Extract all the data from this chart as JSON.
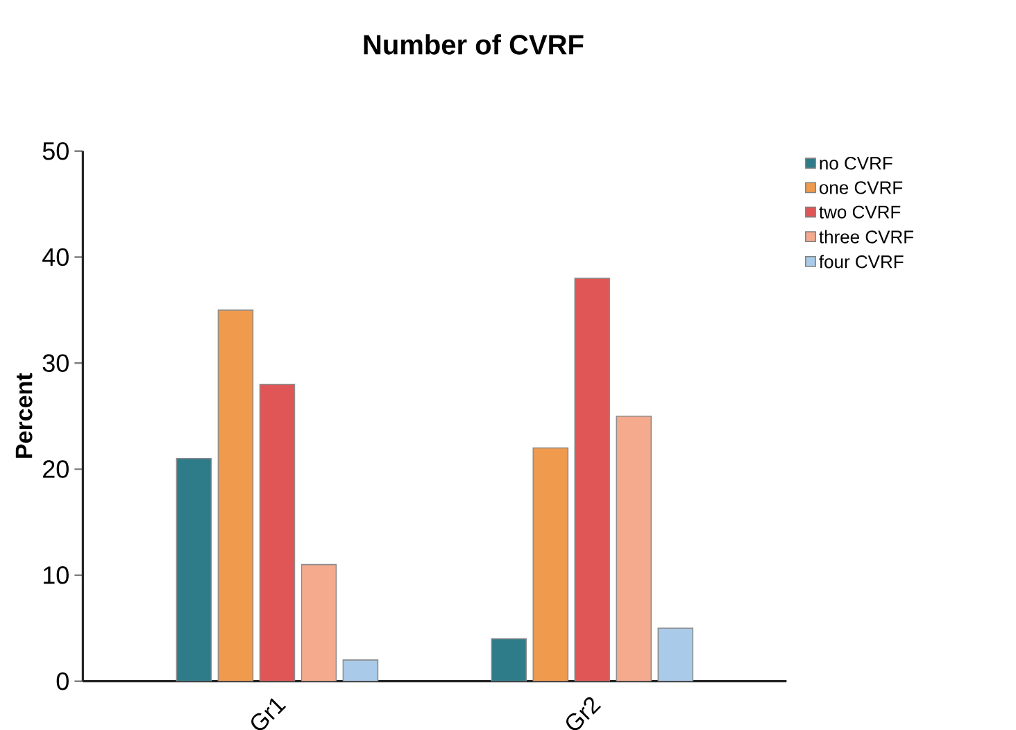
{
  "chart_data": {
    "type": "bar",
    "title": "Number of CVRF",
    "ylabel": "Percent",
    "categories": [
      "Gr1",
      "Gr2"
    ],
    "series": [
      {
        "name": "no CVRF",
        "color": "#2e7b8a",
        "values": [
          21,
          4
        ]
      },
      {
        "name": "one CVRF",
        "color": "#f09a4e",
        "values": [
          35,
          22
        ]
      },
      {
        "name": "two CVRF",
        "color": "#e05656",
        "values": [
          28,
          38
        ]
      },
      {
        "name": "three CVRF",
        "color": "#f5aa8e",
        "values": [
          11,
          25
        ]
      },
      {
        "name": "four CVRF",
        "color": "#a9cbe9",
        "values": [
          2,
          5
        ]
      }
    ],
    "ylim": [
      0,
      50
    ],
    "yticks": [
      0,
      10,
      20,
      30,
      40,
      50
    ],
    "legend": "top right",
    "grid": false
  }
}
